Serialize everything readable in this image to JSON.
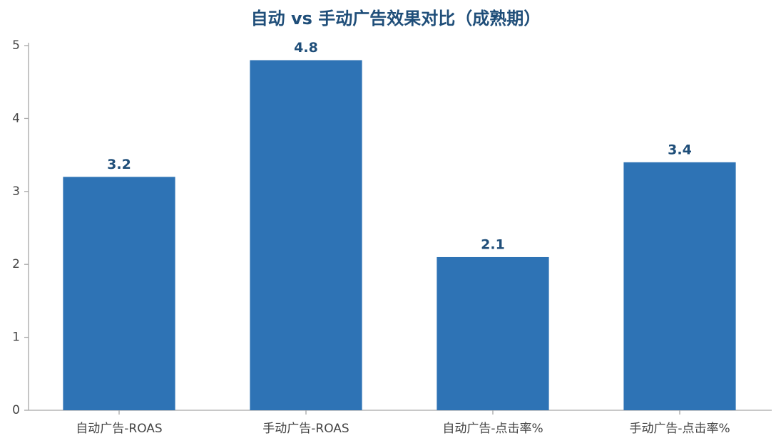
{
  "chart_data": {
    "type": "bar",
    "title": "自动 vs 手动广告效果对比（成熟期）",
    "categories": [
      "自动广告-ROAS",
      "手动广告-ROAS",
      "自动广告-点击率%",
      "手动广告-点击率%"
    ],
    "values": [
      3.2,
      4.8,
      2.1,
      3.4
    ],
    "color": "#2e73b5",
    "ylim": [
      0,
      5
    ],
    "yticks": [
      0,
      1,
      2,
      3,
      4,
      5
    ],
    "grid": false
  }
}
